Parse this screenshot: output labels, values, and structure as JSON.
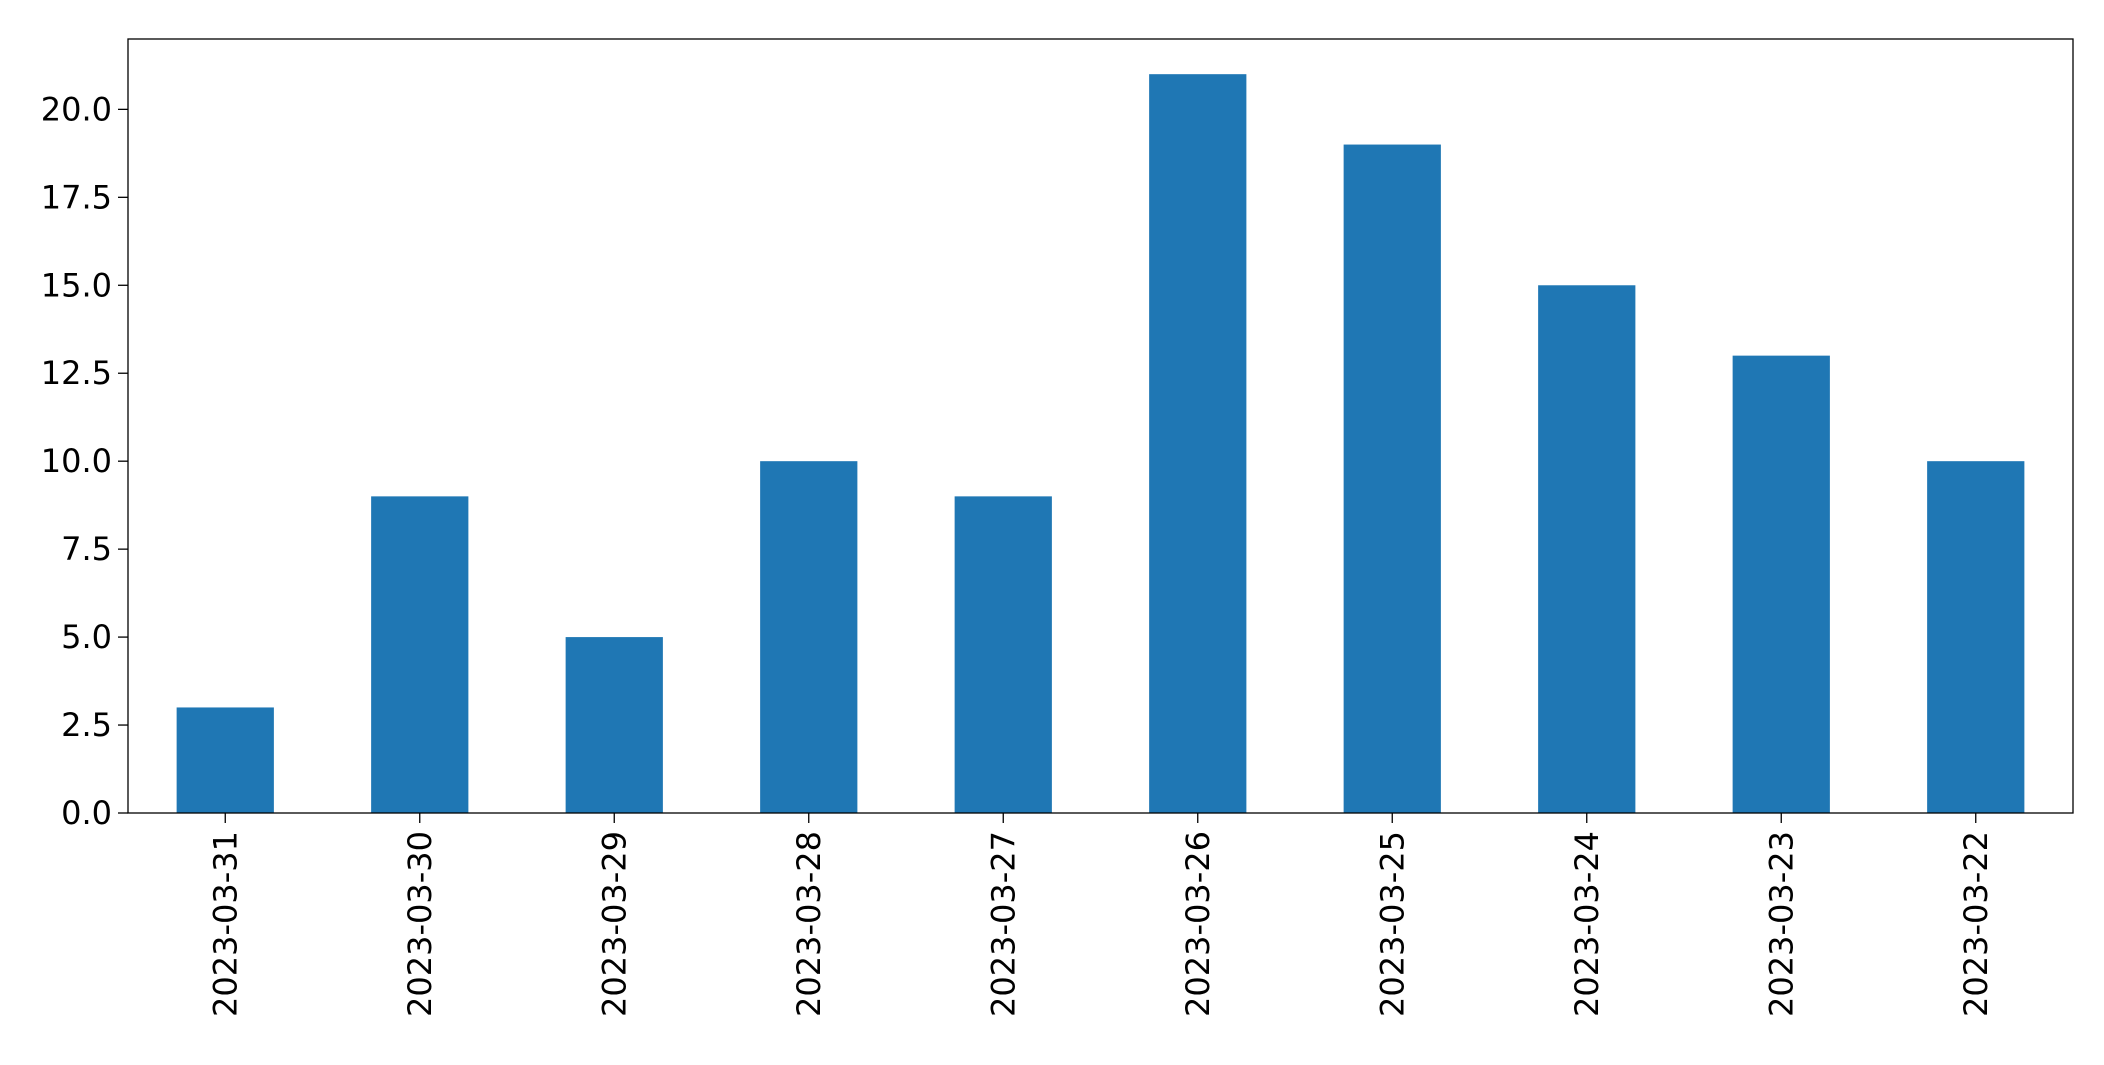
{
  "chart_data": {
    "type": "bar",
    "title": "",
    "xlabel": "",
    "ylabel": "",
    "categories": [
      "2023-03-31",
      "2023-03-30",
      "2023-03-29",
      "2023-03-28",
      "2023-03-27",
      "2023-03-26",
      "2023-03-25",
      "2023-03-24",
      "2023-03-23",
      "2023-03-22"
    ],
    "values": [
      3,
      9,
      5,
      10,
      9,
      21,
      19,
      15,
      13,
      10
    ],
    "ylim": [
      0,
      22
    ],
    "yticks": [
      "0.0",
      "2.5",
      "5.0",
      "7.5",
      "10.0",
      "12.5",
      "15.0",
      "17.5",
      "20.0"
    ],
    "grid": false,
    "legend": "none",
    "bar_color": "#1f77b4"
  }
}
